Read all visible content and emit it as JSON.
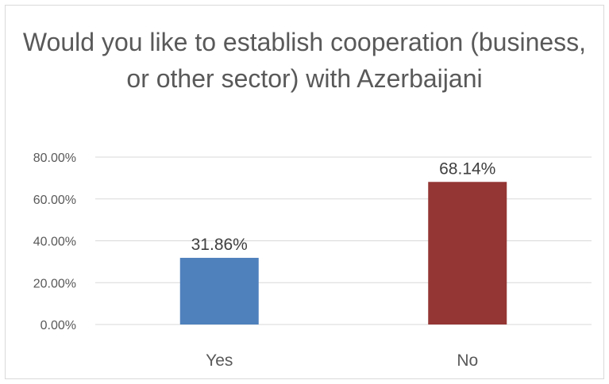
{
  "chart_data": {
    "type": "bar",
    "title": "Would you like to establish cooperation (business, or other sector) with Azerbaijani",
    "categories": [
      "Yes",
      "No"
    ],
    "values": [
      31.86,
      68.14
    ],
    "data_labels": [
      "31.86%",
      "68.14%"
    ],
    "colors": [
      "#4f81bd",
      "#943634"
    ],
    "ylim": [
      0,
      80
    ],
    "yticks": [
      0,
      20,
      40,
      60,
      80
    ],
    "ytick_labels": [
      "0.00%",
      "20.00%",
      "40.00%",
      "60.00%",
      "80.00%"
    ],
    "grid": true,
    "legend": "none"
  }
}
